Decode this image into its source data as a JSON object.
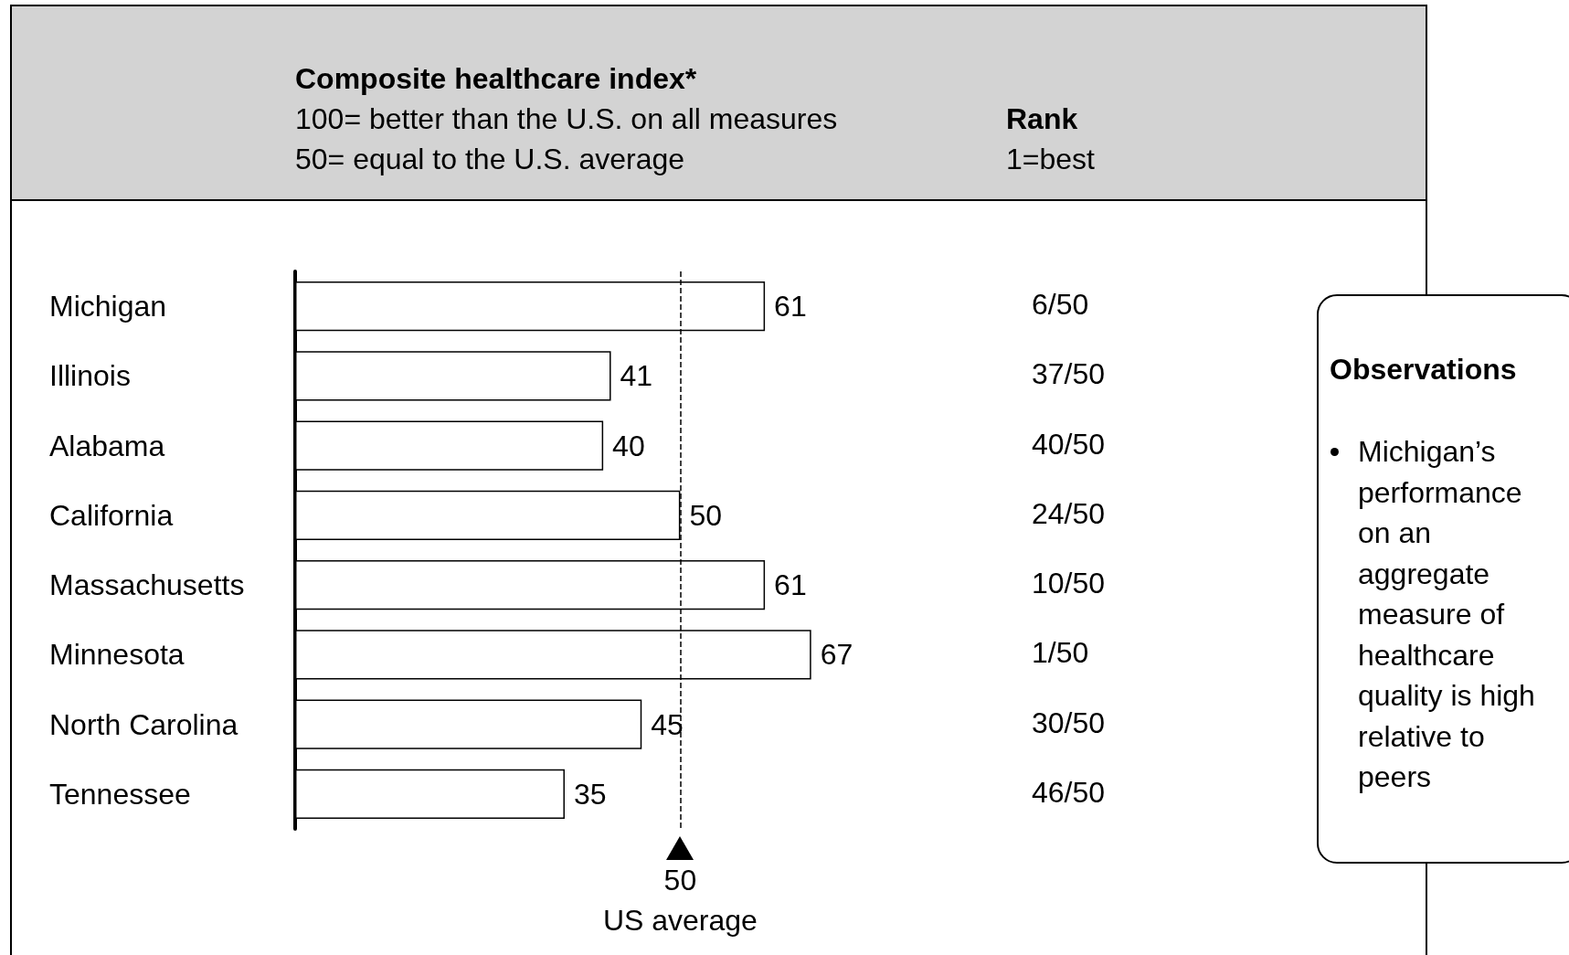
{
  "chart_data": {
    "type": "bar",
    "orientation": "horizontal",
    "title": "Composite healthcare index*",
    "subtitle": "100= better than the U.S. on all measures\n50= equal to the U.S. average",
    "categories": [
      "Michigan",
      "Illinois",
      "Alabama",
      "California",
      "Massachusetts",
      "Minnesota",
      "North Carolina",
      "Tennessee"
    ],
    "values": [
      61,
      41,
      40,
      50,
      61,
      67,
      45,
      35
    ],
    "color": "#ffffff",
    "data_labels": true,
    "grid": false,
    "ref_lines": [
      {
        "axis": "x",
        "value": 50,
        "label": "50\nUS average",
        "line_style": "dashed",
        "color": "#000000"
      }
    ],
    "annotations": [
      "Rank",
      "1=best",
      "Observations",
      "Michigan’s performance on an aggregate measure of healthcare quality is high relative to peers",
      "6/50",
      "37/50",
      "40/50",
      "24/50",
      "10/50",
      "1/50",
      "30/50",
      "46/50"
    ]
  }
}
